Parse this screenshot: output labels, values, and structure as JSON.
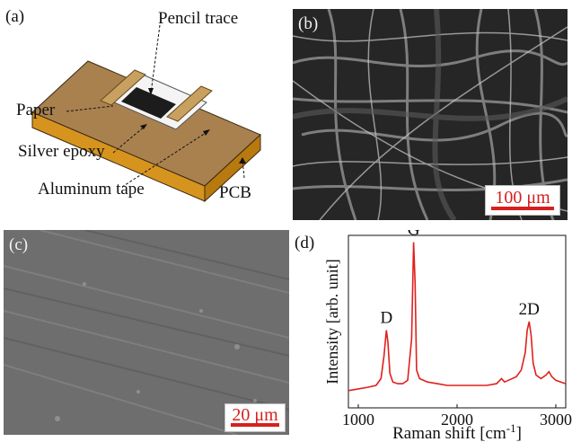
{
  "panels": {
    "a": {
      "label": "(a)",
      "callouts": {
        "pencil_trace": "Pencil trace",
        "paper": "Paper",
        "silver_epoxy": "Silver epoxy",
        "aluminum_tape": "Aluminum tape",
        "pcb": "PCB"
      }
    },
    "b": {
      "label": "(b)",
      "scale_bar": "100 μm"
    },
    "c": {
      "label": "(c)",
      "scale_bar": "20 μm"
    },
    "d": {
      "label": "(d)"
    }
  },
  "chart_data": {
    "type": "line",
    "xlabel": "Raman shift [cm",
    "xlabel_sup": "-1",
    "xlabel_end": "]",
    "ylabel": "Intensity [arb. unit]",
    "xlim": [
      900,
      3100
    ],
    "xticks": [
      1000,
      2000,
      3000
    ],
    "xtick_labels": [
      "1000",
      "2000",
      "3000"
    ],
    "yticks_shown": false,
    "series": [
      {
        "color": "#e0201c",
        "points": [
          [
            900,
            0.1
          ],
          [
            1000,
            0.11
          ],
          [
            1100,
            0.12
          ],
          [
            1180,
            0.13
          ],
          [
            1230,
            0.17
          ],
          [
            1260,
            0.3
          ],
          [
            1285,
            0.45
          ],
          [
            1300,
            0.38
          ],
          [
            1320,
            0.2
          ],
          [
            1350,
            0.15
          ],
          [
            1400,
            0.14
          ],
          [
            1450,
            0.14
          ],
          [
            1500,
            0.16
          ],
          [
            1540,
            0.4
          ],
          [
            1560,
            0.96
          ],
          [
            1575,
            0.72
          ],
          [
            1590,
            0.22
          ],
          [
            1620,
            0.17
          ],
          [
            1700,
            0.15
          ],
          [
            1800,
            0.14
          ],
          [
            1900,
            0.13
          ],
          [
            2000,
            0.13
          ],
          [
            2100,
            0.13
          ],
          [
            2200,
            0.13
          ],
          [
            2300,
            0.13
          ],
          [
            2400,
            0.14
          ],
          [
            2450,
            0.17
          ],
          [
            2480,
            0.15
          ],
          [
            2520,
            0.16
          ],
          [
            2600,
            0.18
          ],
          [
            2650,
            0.22
          ],
          [
            2690,
            0.32
          ],
          [
            2710,
            0.45
          ],
          [
            2730,
            0.5
          ],
          [
            2750,
            0.42
          ],
          [
            2770,
            0.26
          ],
          [
            2800,
            0.19
          ],
          [
            2850,
            0.17
          ],
          [
            2900,
            0.19
          ],
          [
            2930,
            0.21
          ],
          [
            2960,
            0.18
          ],
          [
            3000,
            0.16
          ],
          [
            3050,
            0.15
          ],
          [
            3100,
            0.14
          ]
        ]
      }
    ],
    "annotations": [
      {
        "text": "D",
        "x": 1285,
        "y": 0.45
      },
      {
        "text": "G",
        "x": 1560,
        "y": 0.96
      },
      {
        "text": "2D",
        "x": 2730,
        "y": 0.5
      }
    ]
  }
}
